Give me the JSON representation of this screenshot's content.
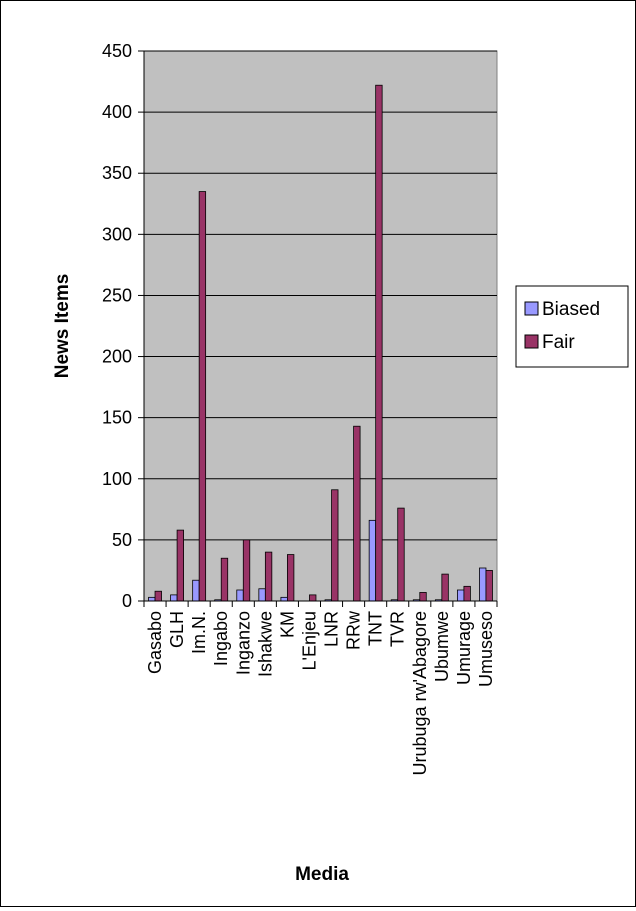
{
  "chart_data": {
    "type": "bar",
    "xlabel": "Media",
    "ylabel": "News Items",
    "ylim": [
      0,
      450
    ],
    "yticks": [
      0,
      50,
      100,
      150,
      200,
      250,
      300,
      350,
      400,
      450
    ],
    "grid": true,
    "legend_position": "right",
    "categories": [
      "Gasabo",
      "GLH",
      "Im.N.",
      "Ingabo",
      "Inganzo",
      "Ishakwe",
      "KM",
      "L'Enjeu",
      "LNR",
      "RRw",
      "TNT",
      "TVR",
      "Urubuga rw'Abagore",
      "Ubumwe",
      "Umurage",
      "Umuseso"
    ],
    "series": [
      {
        "name": "Biased",
        "color": "#9999ff",
        "values": [
          3,
          5,
          17,
          1,
          9,
          10,
          3,
          0,
          1,
          0,
          66,
          1,
          1,
          1,
          9,
          27
        ]
      },
      {
        "name": "Fair",
        "color": "#993366",
        "values": [
          8,
          58,
          335,
          35,
          50,
          40,
          38,
          5,
          91,
          143,
          422,
          76,
          7,
          22,
          12,
          25
        ]
      }
    ],
    "plot_background": "#c0c0c0"
  }
}
